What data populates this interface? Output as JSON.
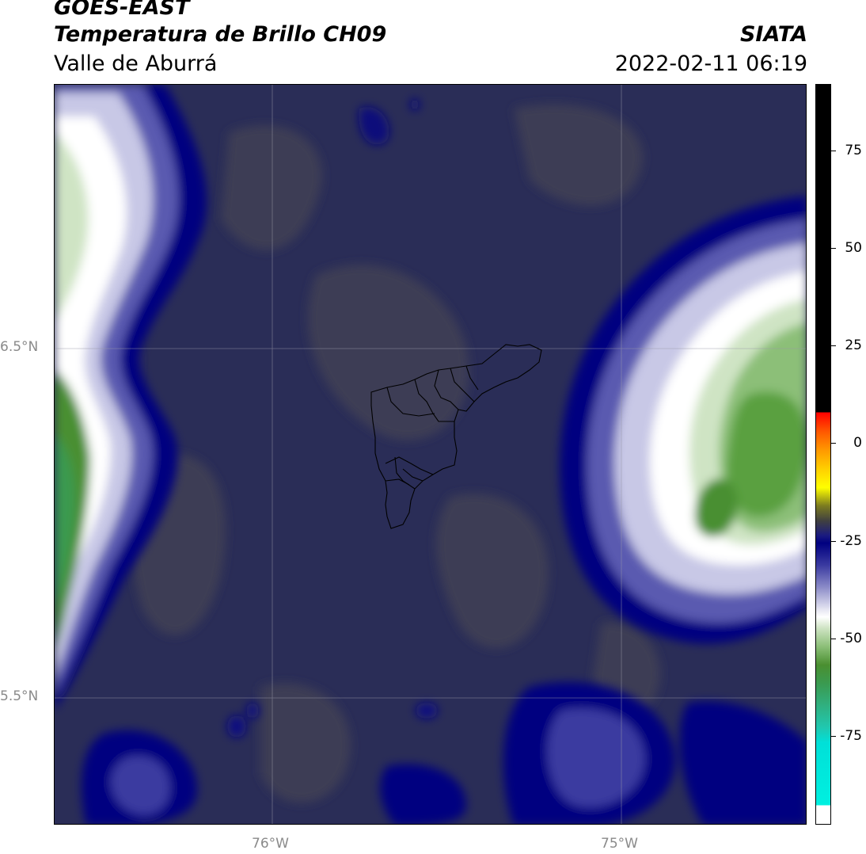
{
  "header": {
    "line1": "GOES-EAST",
    "line2": "Temperatura de Brillo CH09",
    "line3": "Valle de Aburrá",
    "org": "SIATA",
    "datetime": "2022-02-11 06:19"
  },
  "axes": {
    "lat_ticks": [
      "6.5°N",
      "5.5°N"
    ],
    "lon_ticks": [
      "76°W",
      "75°W"
    ]
  },
  "colorbar": {
    "ticks": [
      "75",
      "50",
      "25",
      "0",
      "-25",
      "-50",
      "-75"
    ],
    "range": [
      -96,
      92
    ]
  },
  "colors": {
    "background_dark": "#2a2d57",
    "cloud_band": "#000080",
    "cold_cloud": "#ffffff",
    "very_cold": "#4a8f30",
    "warm_patch": "#3c3d55"
  }
}
